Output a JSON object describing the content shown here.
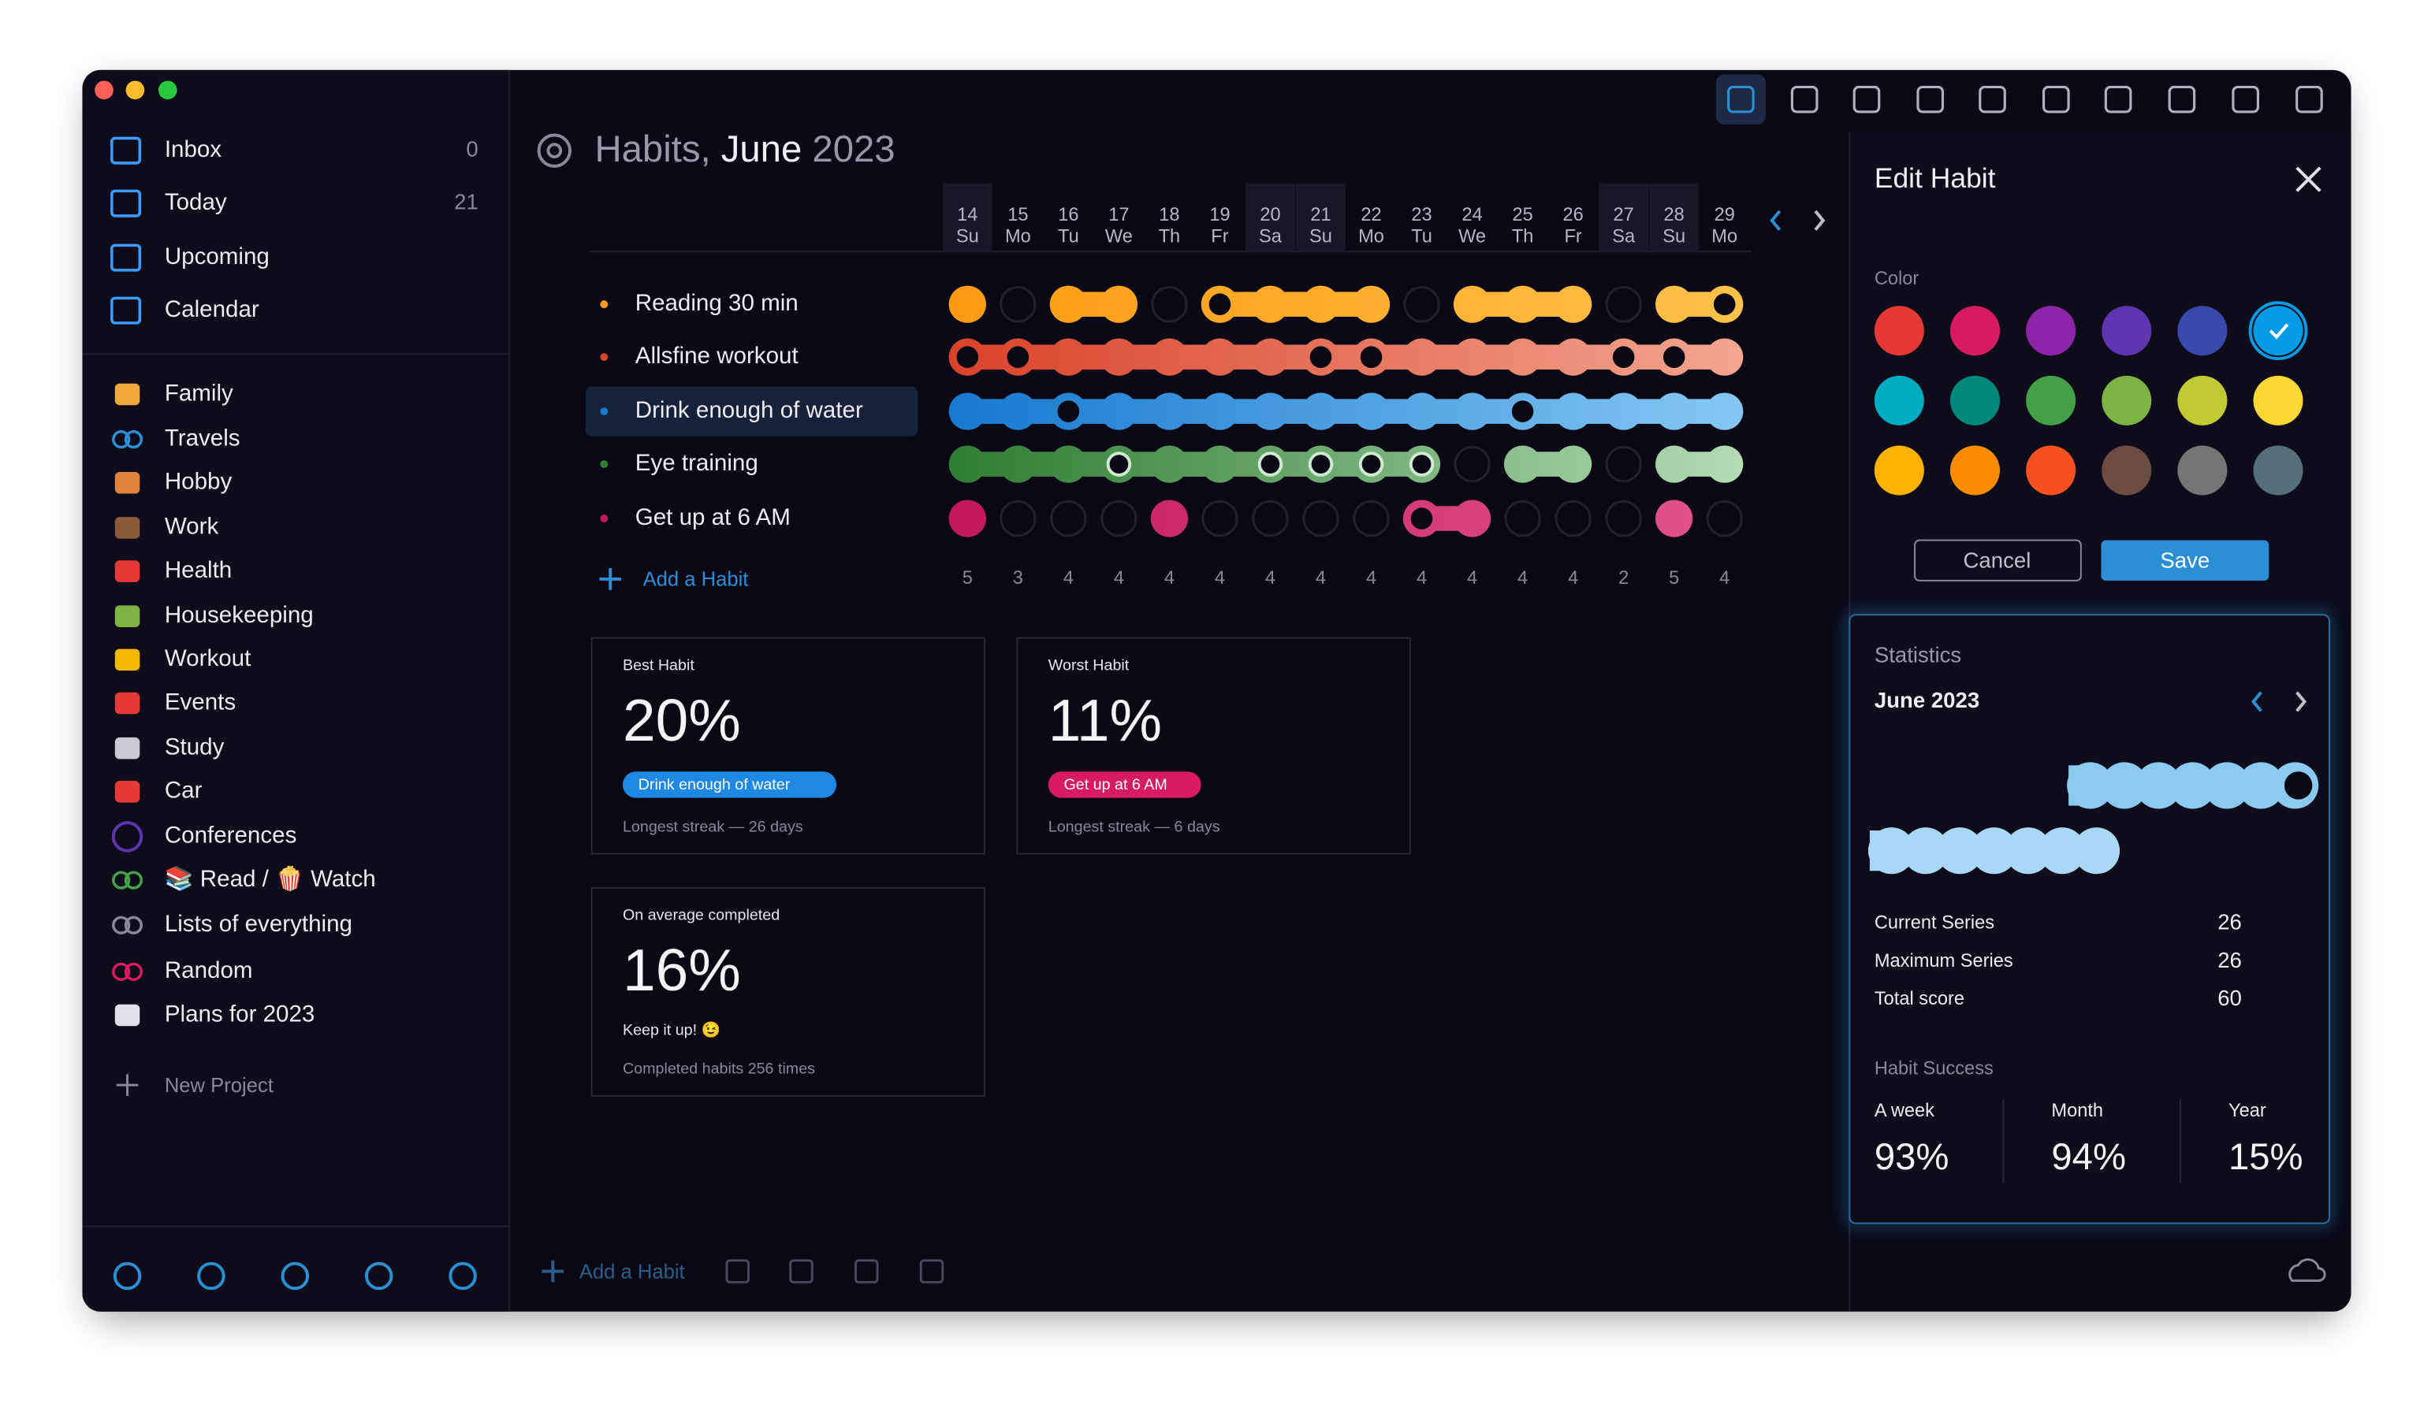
{
  "sidebar": {
    "nav": [
      {
        "label": "Inbox",
        "count": 0
      },
      {
        "label": "Today",
        "count": 21
      },
      {
        "label": "Upcoming"
      },
      {
        "label": "Calendar"
      }
    ],
    "projects": [
      "Family",
      "Travels",
      "Hobby",
      "Work",
      "Health",
      "Housekeeping",
      "Workout",
      "Events",
      "Study",
      "Car",
      "Conferences",
      "📚 Read / 🍿 Watch",
      "Lists of everything",
      "Random",
      "Plans for 2023"
    ],
    "new_project": "New Project"
  },
  "header": {
    "title": "Habits,",
    "month": "June",
    "year": "2023"
  },
  "grid": {
    "days": [
      {
        "date": 14,
        "weekday": "Su"
      },
      {
        "date": 15,
        "weekday": "Mo"
      },
      {
        "date": 16,
        "weekday": "Tu"
      },
      {
        "date": 17,
        "weekday": "We"
      },
      {
        "date": 18,
        "weekday": "Th"
      },
      {
        "date": 19,
        "weekday": "Fr"
      },
      {
        "date": 20,
        "weekday": "Sa"
      },
      {
        "date": 21,
        "weekday": "Su"
      },
      {
        "date": 22,
        "weekday": "Mo"
      },
      {
        "date": 23,
        "weekday": "Tu"
      },
      {
        "date": 24,
        "weekday": "We"
      },
      {
        "date": 25,
        "weekday": "Th"
      },
      {
        "date": 26,
        "weekday": "Fr"
      },
      {
        "date": 27,
        "weekday": "Sa"
      },
      {
        "date": 28,
        "weekday": "Su"
      },
      {
        "date": 29,
        "weekday": "Mo"
      }
    ],
    "habits": [
      "Reading 30 min",
      "Allsfine workout",
      "Drink enough of water",
      "Eye training",
      "Get up at 6 AM"
    ],
    "totals": [
      5,
      3,
      4,
      4,
      4,
      4,
      4,
      4,
      4,
      4,
      4,
      4,
      4,
      2,
      5,
      4
    ],
    "add_habit": "Add a Habit"
  },
  "cards": [
    {
      "label": "Best Habit",
      "value": "20%",
      "habit": "Drink enough of water",
      "note": "Longest streak — 26 days"
    },
    {
      "label": "Worst Habit",
      "value": "11%",
      "habit": "Get up at 6 AM",
      "note": "Longest streak — 6 days"
    },
    {
      "label": "On average completed",
      "value": "16%",
      "habit": "Keep it up! 😉",
      "note": "Completed habits 256 times"
    }
  ],
  "toolbar": {
    "add_habit": "Add a Habit"
  },
  "edit_habit": {
    "title": "Edit Habit",
    "color_label": "Color",
    "cancel": "Cancel",
    "save": "Save"
  },
  "statistics": {
    "title": "Statistics",
    "period": "June 2023",
    "rows": [
      {
        "label": "Current Series",
        "value": 26
      },
      {
        "label": "Maximum Series",
        "value": 26
      },
      {
        "label": "Total score",
        "value": 60
      }
    ],
    "success_label": "Habit Success",
    "success": [
      {
        "label": "A week",
        "value": "93%"
      },
      {
        "label": "Month",
        "value": "94%"
      },
      {
        "label": "Year",
        "value": "15%"
      }
    ]
  }
}
